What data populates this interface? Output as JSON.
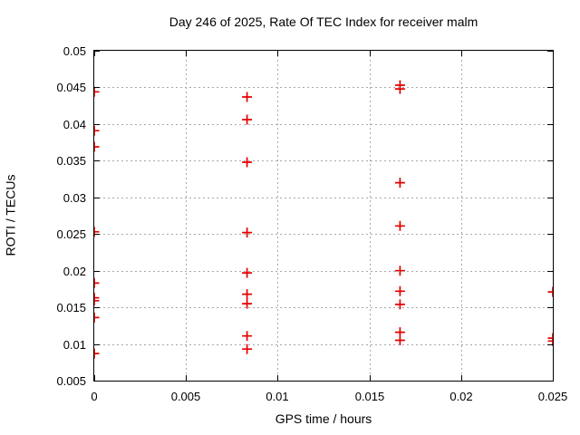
{
  "chart_data": {
    "type": "scatter",
    "title": "Day 246 of 2025, Rate Of TEC Index for receiver malm",
    "xlabel": "GPS time / hours",
    "ylabel": "ROTI / TECUs",
    "xlim": [
      0,
      0.025
    ],
    "ylim": [
      0.005,
      0.05
    ],
    "grid": true,
    "legend": "none",
    "marker": {
      "symbol": "plus",
      "color": "#e60000",
      "size": 11
    },
    "grid_color": "#a8a8a8",
    "x_ticks": [
      {
        "v": 0,
        "label": "0"
      },
      {
        "v": 0.005,
        "label": "0.005"
      },
      {
        "v": 0.01,
        "label": "0.01"
      },
      {
        "v": 0.015,
        "label": "0.015"
      },
      {
        "v": 0.02,
        "label": "0.02"
      },
      {
        "v": 0.025,
        "label": "0.025"
      }
    ],
    "y_ticks": [
      {
        "v": 0.005,
        "label": "0.005"
      },
      {
        "v": 0.01,
        "label": "0.01"
      },
      {
        "v": 0.015,
        "label": "0.015"
      },
      {
        "v": 0.02,
        "label": "0.02"
      },
      {
        "v": 0.025,
        "label": "0.025"
      },
      {
        "v": 0.03,
        "label": "0.03"
      },
      {
        "v": 0.035,
        "label": "0.035"
      },
      {
        "v": 0.04,
        "label": "0.04"
      },
      {
        "v": 0.045,
        "label": "0.045"
      },
      {
        "v": 0.05,
        "label": "0.05"
      }
    ],
    "series": [
      {
        "name": "ROTI",
        "points": [
          [
            0.0,
            0.0444
          ],
          [
            0.0,
            0.0391
          ],
          [
            0.0,
            0.0369
          ],
          [
            0.0,
            0.0253
          ],
          [
            0.0,
            0.0183
          ],
          [
            0.0,
            0.0163
          ],
          [
            0.0,
            0.0159
          ],
          [
            0.0,
            0.0136
          ],
          [
            0.0,
            0.0087
          ],
          [
            0.00833,
            0.0437
          ],
          [
            0.00833,
            0.0406
          ],
          [
            0.00833,
            0.0348
          ],
          [
            0.00833,
            0.0252
          ],
          [
            0.00833,
            0.0197
          ],
          [
            0.00833,
            0.0168
          ],
          [
            0.00833,
            0.0155
          ],
          [
            0.00833,
            0.0111
          ],
          [
            0.00833,
            0.0093
          ],
          [
            0.01667,
            0.0453
          ],
          [
            0.01667,
            0.0448
          ],
          [
            0.01667,
            0.032
          ],
          [
            0.01667,
            0.0261
          ],
          [
            0.01667,
            0.02
          ],
          [
            0.01667,
            0.0172
          ],
          [
            0.01667,
            0.0154
          ],
          [
            0.01667,
            0.0116
          ],
          [
            0.01667,
            0.0105
          ],
          [
            0.025,
            0.0171
          ],
          [
            0.025,
            0.0108
          ],
          [
            0.025,
            0.0104
          ]
        ]
      }
    ]
  }
}
